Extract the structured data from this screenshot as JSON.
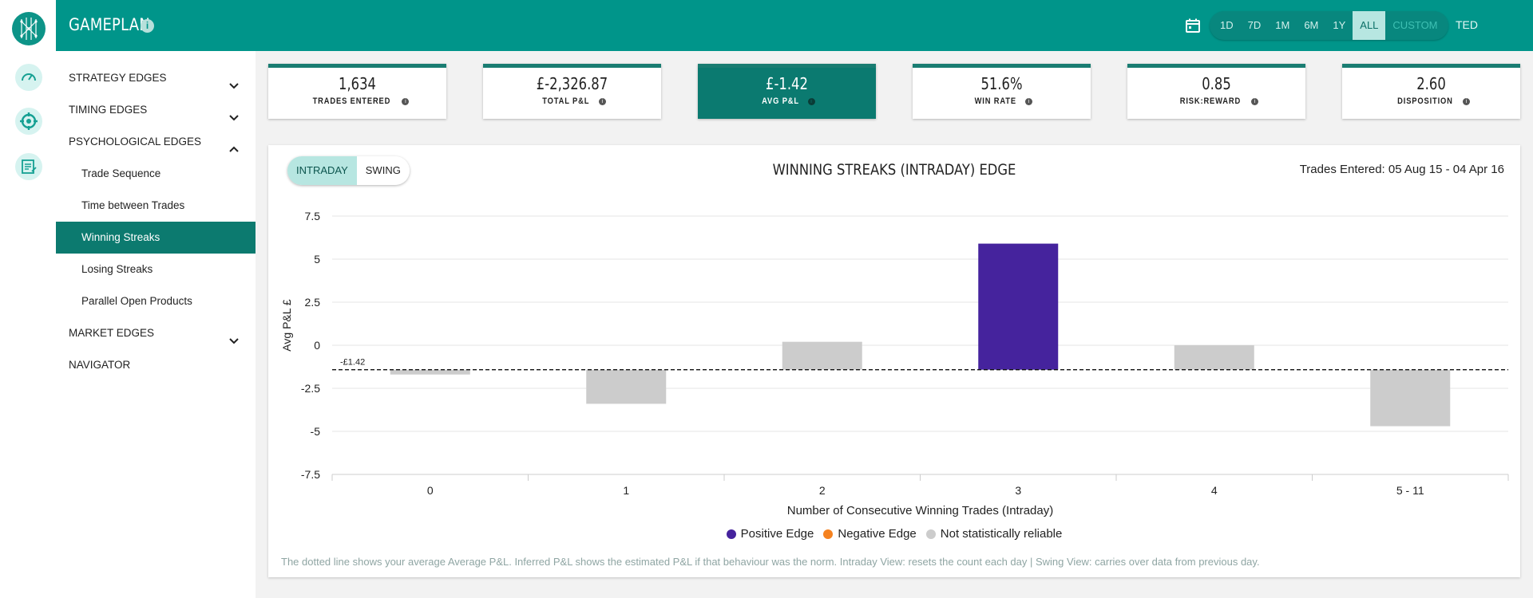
{
  "header": {
    "app_title": "GAMEPLAN",
    "info_icon": "i",
    "ranges": [
      {
        "label": "1D",
        "active": false
      },
      {
        "label": "7D",
        "active": false
      },
      {
        "label": "1M",
        "active": false
      },
      {
        "label": "6M",
        "active": false
      },
      {
        "label": "1Y",
        "active": false
      },
      {
        "label": "ALL",
        "active": true
      },
      {
        "label": "CUSTOM",
        "active": false
      }
    ],
    "user": "TED"
  },
  "sidebar": {
    "items": [
      {
        "label": "STRATEGY EDGES",
        "chevron": "down",
        "sub": false,
        "selected": false
      },
      {
        "label": "TIMING EDGES",
        "chevron": "down",
        "sub": false,
        "selected": false
      },
      {
        "label": "PSYCHOLOGICAL EDGES",
        "chevron": "up",
        "sub": false,
        "selected": false
      },
      {
        "label": "Trade Sequence",
        "chevron": "",
        "sub": true,
        "selected": false
      },
      {
        "label": "Time between Trades",
        "chevron": "",
        "sub": true,
        "selected": false
      },
      {
        "label": "Winning Streaks",
        "chevron": "",
        "sub": true,
        "selected": true
      },
      {
        "label": "Losing Streaks",
        "chevron": "",
        "sub": true,
        "selected": false
      },
      {
        "label": "Parallel Open Products",
        "chevron": "",
        "sub": true,
        "selected": false
      },
      {
        "label": "MARKET EDGES",
        "chevron": "down",
        "sub": false,
        "selected": false
      },
      {
        "label": "NAVIGATOR",
        "chevron": "",
        "sub": false,
        "selected": false
      }
    ]
  },
  "kpis": [
    {
      "value": "1,634",
      "label": "TRADES ENTERED",
      "active": false
    },
    {
      "value": "£-2,326.87",
      "label": "TOTAL P&L",
      "active": false
    },
    {
      "value": "£-1.42",
      "label": "AVG P&L",
      "active": true
    },
    {
      "value": "51.6%",
      "label": "WIN RATE",
      "active": false
    },
    {
      "value": "0.85",
      "label": "RISK:REWARD",
      "active": false
    },
    {
      "value": "2.60",
      "label": "DISPOSITION",
      "active": false
    }
  ],
  "panel": {
    "toggle": [
      {
        "label": "INTRADAY",
        "active": true
      },
      {
        "label": "SWING",
        "active": false
      }
    ],
    "date_range": "Trades Entered: 05 Aug 15 - 04 Apr 16",
    "footnote": "The dotted line shows your average Average P&L.  Inferred P&L shows the estimated P&L if that behaviour was the norm.  Intraday View: resets the count each day | Swing View: carries over data from previous day."
  },
  "colors": {
    "positive": "#45239d",
    "negative": "#f58220",
    "unreliable": "#cccccc",
    "brand": "#00958a"
  },
  "chart_data": {
    "type": "bar",
    "title": "WINNING STREAKS (INTRADAY) EDGE",
    "xlabel": "Number of Consecutive Winning Trades (Intraday)",
    "ylabel": "Avg P&L £",
    "categories": [
      "0",
      "1",
      "2",
      "3",
      "4",
      "5 - 11"
    ],
    "values": [
      -1.7,
      -3.4,
      0.2,
      5.9,
      0,
      -4.7
    ],
    "status": [
      "unreliable",
      "unreliable",
      "unreliable",
      "positive",
      "unreliable",
      "unreliable"
    ],
    "ylim": [
      -7.5,
      7.5
    ],
    "yticks": [
      7.5,
      5,
      2.5,
      0,
      -2.5,
      -5,
      -7.5
    ],
    "ytick_labels": [
      "7.5",
      "5",
      "2.5",
      "0",
      "-2.5",
      "-5",
      "-7.5"
    ],
    "reference_line": {
      "value": -1.42,
      "label": "-£1.42"
    },
    "grid": true,
    "legend": [
      {
        "label": "Positive Edge",
        "status": "positive"
      },
      {
        "label": "Negative Edge",
        "status": "negative"
      },
      {
        "label": "Not statistically reliable",
        "status": "unreliable"
      }
    ]
  }
}
